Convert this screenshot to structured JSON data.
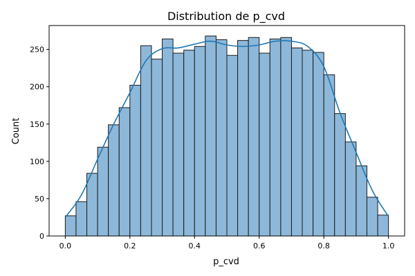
{
  "chart_data": {
    "type": "bar",
    "title": "Distribution de p_cvd",
    "xlabel": "p_cvd",
    "ylabel": "Count",
    "xlim": [
      -0.05,
      1.05
    ],
    "ylim": [
      0,
      282
    ],
    "xticks": [
      0.0,
      0.2,
      0.4,
      0.6,
      0.8,
      1.0
    ],
    "xtick_labels": [
      "0.0",
      "0.2",
      "0.4",
      "0.6",
      "0.8",
      "1.0"
    ],
    "yticks": [
      0,
      50,
      100,
      150,
      200,
      250
    ],
    "ytick_labels": [
      "0",
      "50",
      "100",
      "150",
      "200",
      "250"
    ],
    "grid": false,
    "bin_edges": [
      0.0,
      0.0333,
      0.0667,
      0.1,
      0.1333,
      0.1667,
      0.2,
      0.2333,
      0.2667,
      0.3,
      0.3333,
      0.3667,
      0.4,
      0.4333,
      0.4667,
      0.5,
      0.5333,
      0.5667,
      0.6,
      0.6333,
      0.6667,
      0.7,
      0.7333,
      0.7667,
      0.8,
      0.8333,
      0.8667,
      0.9,
      0.9333,
      0.9667,
      1.0
    ],
    "values": [
      27,
      46,
      84,
      119,
      149,
      172,
      202,
      255,
      237,
      264,
      245,
      249,
      254,
      268,
      263,
      242,
      262,
      266,
      245,
      264,
      266,
      252,
      249,
      246,
      216,
      164,
      126,
      94,
      52,
      28
    ],
    "kde": {
      "x": [
        0.0,
        0.05,
        0.1,
        0.15,
        0.2,
        0.25,
        0.3,
        0.35,
        0.4,
        0.45,
        0.5,
        0.55,
        0.6,
        0.65,
        0.7,
        0.75,
        0.8,
        0.85,
        0.9,
        0.95,
        1.0
      ],
      "y": [
        25,
        55,
        103,
        150,
        192,
        235,
        251,
        252,
        257,
        261,
        256,
        254,
        256,
        261,
        261,
        254,
        227,
        165,
        112,
        61,
        26
      ]
    },
    "colors": {
      "bar_fill": "#8db8d9",
      "bar_edge": "#1a1a1a",
      "kde_line": "#1f77b4"
    }
  }
}
